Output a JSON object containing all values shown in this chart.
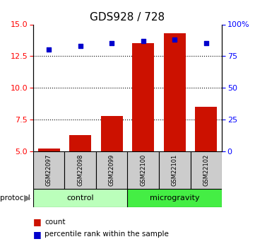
{
  "title": "GDS928 / 728",
  "samples": [
    "GSM22097",
    "GSM22098",
    "GSM22099",
    "GSM22100",
    "GSM22101",
    "GSM22102"
  ],
  "counts": [
    5.2,
    6.3,
    7.8,
    13.5,
    14.3,
    8.5
  ],
  "percentiles": [
    80,
    83,
    85,
    87,
    88,
    85
  ],
  "ylim_left": [
    5,
    15
  ],
  "ylim_right": [
    0,
    100
  ],
  "yticks_left": [
    5.0,
    7.5,
    10.0,
    12.5,
    15.0
  ],
  "yticks_right": [
    0,
    25,
    50,
    75,
    100
  ],
  "bar_color": "#cc1100",
  "dot_color": "#0000cc",
  "control_color": "#bbffbb",
  "microgravity_color": "#44ee44",
  "sample_box_color": "#cccccc",
  "title_fontsize": 11,
  "tick_fontsize": 8,
  "bar_width": 0.7
}
